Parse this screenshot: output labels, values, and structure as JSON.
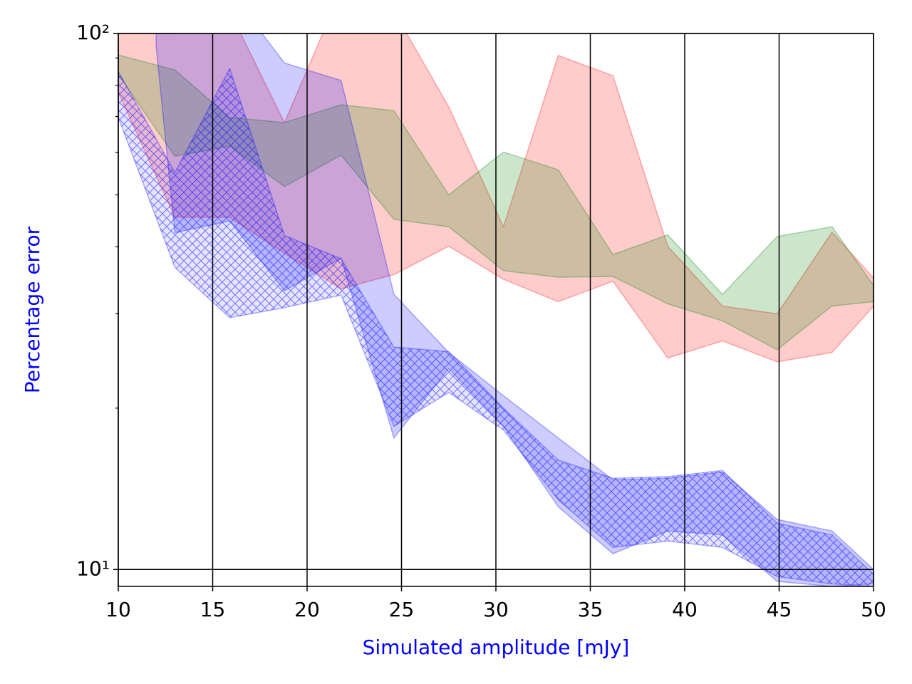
{
  "chart_data": {
    "type": "band",
    "xlabel": "Simulated amplitude [mJy]",
    "ylabel": "Percentage error",
    "yscale": "log",
    "grid": true,
    "xlim": [
      10,
      50
    ],
    "ylim": [
      9.3,
      100
    ],
    "xticks": [
      10,
      15,
      20,
      25,
      30,
      35,
      40,
      45,
      50
    ],
    "yticks": [
      {
        "value": 10,
        "label": "10¹"
      },
      {
        "value": 100,
        "label": "10²"
      }
    ],
    "yticks_minor": [
      20,
      30,
      40,
      50,
      60,
      70,
      80,
      90
    ],
    "x": [
      10,
      13,
      15.9,
      18.8,
      21.8,
      24.6,
      27.5,
      30.4,
      33.3,
      36.2,
      39.1,
      42,
      44.9,
      47.8,
      50
    ],
    "series": [
      {
        "color": "#ff0000",
        "upper": [
          100,
          100,
          110,
          68.2,
          120,
          110,
          73,
          43.6,
          91,
          83.4,
          40.1,
          31.0,
          30.0,
          42.6,
          35.0
        ],
        "lower": [
          77.6,
          45.4,
          45.4,
          38.9,
          33.4,
          35.5,
          40.1,
          34.8,
          31.6,
          34.5,
          24.8,
          26.7,
          24.4,
          25.4,
          31.0
        ]
      },
      {
        "color": "#008000",
        "upper": [
          91.2,
          85.5,
          69.7,
          68.2,
          73.6,
          71.8,
          50.0,
          60.1,
          55.7,
          38.7,
          42.1,
          32.6,
          41.8,
          43.6,
          33.9
        ],
        "lower": [
          83.8,
          59.0,
          61.6,
          51.8,
          59.3,
          45.0,
          43.6,
          36.1,
          35.1,
          35.2,
          31.3,
          29.1,
          25.7,
          31.0,
          31.6
        ]
      },
      {
        "color": "#0000ff",
        "x": [
          12,
          13,
          15.9,
          18.8,
          21.8,
          24.6,
          27.5,
          30.4,
          33.3,
          36.2,
          39.1,
          42,
          44.9,
          47.8,
          50
        ],
        "upper": [
          120,
          120,
          120,
          88.1,
          81.7,
          32.6,
          25.4,
          21.1,
          17.6,
          14.7,
          14.8,
          15.2,
          12.4,
          11.8,
          10.0
        ],
        "lower": [
          95,
          42.5,
          44.7,
          33.1,
          38.1,
          17.6,
          23.7,
          18.5,
          13.1,
          10.7,
          11.8,
          11.6,
          9.5,
          9.3,
          9.4
        ]
      },
      {
        "color": "#0000ff",
        "hatch": "xx",
        "upper": [
          85,
          55,
          86,
          42,
          38,
          26,
          25.5,
          20,
          16,
          14.8,
          14.9,
          15.3,
          12.2,
          11.6,
          9.8
        ],
        "lower": [
          69.7,
          36.6,
          29.5,
          30.8,
          32.5,
          18.5,
          21.4,
          18.2,
          13.5,
          11.0,
          11.3,
          11.0,
          9.7,
          9.4,
          9.3
        ]
      }
    ]
  }
}
